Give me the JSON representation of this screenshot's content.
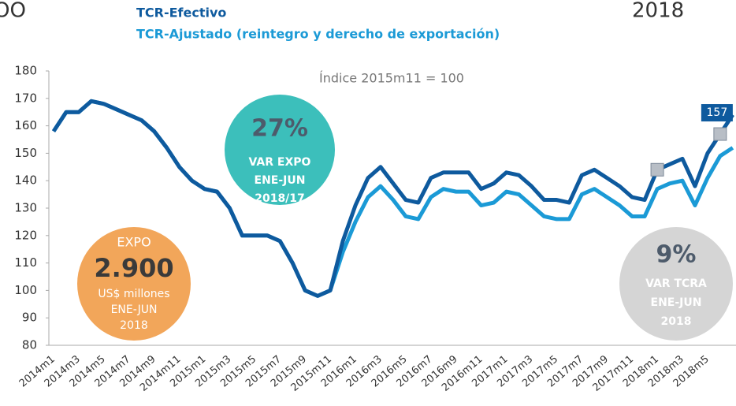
{
  "chart_data": {
    "type": "line",
    "corner_texts": [
      "OO",
      "2018"
    ],
    "legend_texts": [
      "TCR-Efectivo",
      "TCR-Ajustado (reintegro y derecho de exportación)"
    ],
    "annotation": "Índice 2015m11 = 100",
    "categories": [
      "2014m1",
      null,
      "2014m3",
      null,
      "2014m5",
      null,
      "2014m7",
      null,
      "2014m9",
      null,
      "2014m11",
      null,
      "2015m1",
      null,
      "2015m3",
      null,
      "2015m5",
      null,
      "2015m7",
      null,
      "2015m9",
      null,
      "2015m11",
      null,
      "2016m1",
      null,
      "2016m3",
      null,
      "2016m5",
      null,
      "2016m7",
      null,
      "2016m9",
      null,
      "2016m11",
      null,
      "2017m1",
      null,
      "2017m3",
      null,
      "2017m5",
      null,
      "2017m7",
      null,
      "2017m9",
      null,
      "2017m11",
      null,
      "2018m1",
      null,
      "2018m3",
      null,
      "2018m5",
      null,
      null
    ],
    "series": [
      {
        "name": "TCR-Ajustado (reintegro y derecho de exportación)",
        "color": "#1b9ad6",
        "values": [
          158,
          165,
          165,
          169,
          168,
          166,
          164,
          162,
          158,
          152,
          145,
          140,
          137,
          136,
          130,
          120,
          120,
          120,
          118,
          110,
          100,
          98,
          100,
          114,
          125,
          134,
          138,
          133,
          127,
          126,
          134,
          137,
          136,
          136,
          131,
          132,
          136,
          135,
          131,
          127,
          126,
          126,
          135,
          137,
          134,
          131,
          127,
          127,
          137,
          139,
          140,
          131,
          141,
          149,
          152
        ]
      },
      {
        "name": "TCR-Efectivo",
        "color": "#0e5a9e",
        "values": [
          158,
          165,
          165,
          169,
          168,
          166,
          164,
          162,
          158,
          152,
          145,
          140,
          137,
          136,
          130,
          120,
          120,
          120,
          118,
          110,
          100,
          98,
          100,
          118,
          131,
          141,
          145,
          139,
          133,
          132,
          141,
          143,
          143,
          143,
          137,
          139,
          143,
          142,
          138,
          133,
          133,
          132,
          142,
          144,
          141,
          138,
          134,
          133,
          144,
          146,
          148,
          138,
          150,
          157,
          164
        ]
      }
    ],
    "markers": [
      {
        "index": 48,
        "value": 144
      },
      {
        "index": 53,
        "value": 157,
        "label": "157"
      }
    ],
    "ylim": [
      80,
      180
    ],
    "yticks": [
      80,
      90,
      100,
      110,
      120,
      130,
      140,
      150,
      160,
      170,
      180
    ],
    "bubbles": [
      {
        "color": "#3cbfbb",
        "lines": [
          "27%",
          "VAR EXPO",
          "ENE-JUN",
          "2018/17"
        ]
      },
      {
        "color": "#f2a65a",
        "lines": [
          "EXPO",
          "2.900",
          "US$ millones",
          "ENE-JUN",
          "2018"
        ]
      },
      {
        "color": "#d5d5d5",
        "lines": [
          "9%",
          "VAR TCRA",
          "ENE-JUN",
          "2018"
        ]
      }
    ]
  }
}
